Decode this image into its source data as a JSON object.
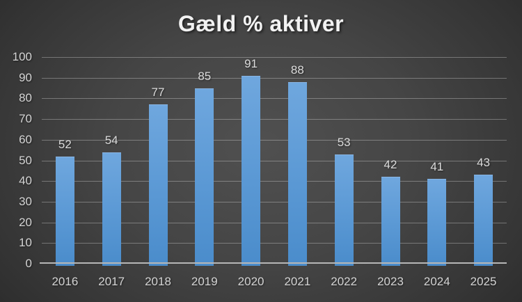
{
  "chart_data": {
    "type": "bar",
    "title": "Gæld % aktiver",
    "categories": [
      "2016",
      "2017",
      "2018",
      "2019",
      "2020",
      "2021",
      "2022",
      "2023",
      "2024",
      "2025"
    ],
    "values": [
      52,
      54,
      77,
      85,
      91,
      88,
      53,
      42,
      41,
      43
    ],
    "xlabel": "",
    "ylabel": "",
    "ylim": [
      0,
      100
    ],
    "ytick_step": 10,
    "grid": true,
    "legend": false,
    "data_labels": true,
    "colors": {
      "bar_top": "#6FA7DE",
      "bar_bottom": "#4A8CCB",
      "background_center": "#505050",
      "background_edge": "#262626",
      "gridline": "rgba(255,255,255,0.30)",
      "axis_line": "#b7b7b7",
      "tick_label": "#d4d4d4",
      "data_label": "#dcdcdc",
      "title": "#f2f2f2"
    }
  }
}
